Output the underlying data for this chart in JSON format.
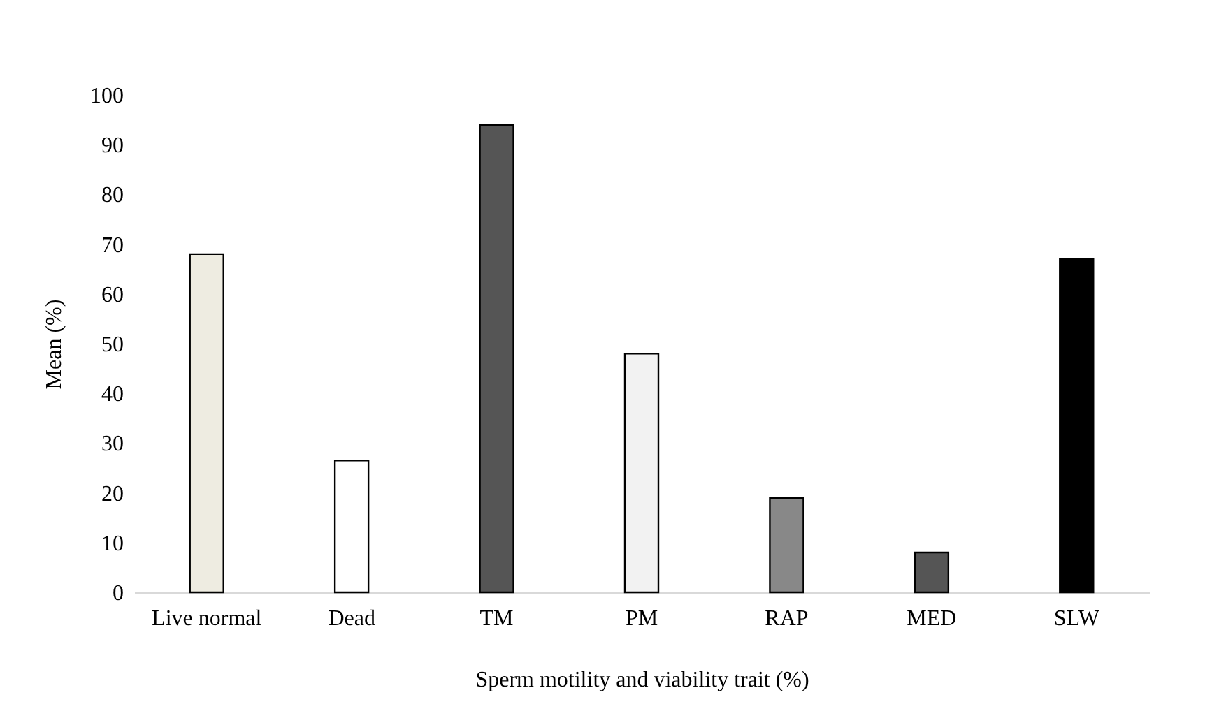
{
  "chart_data": {
    "type": "bar",
    "categories": [
      "Live normal",
      "Dead",
      "TM",
      "PM",
      "RAP",
      "MED",
      "SLW"
    ],
    "values": [
      68,
      26.5,
      94,
      48,
      19,
      8,
      67
    ],
    "colors": [
      "#eeece1",
      "#ffffff",
      "#555555",
      "#f2f2f2",
      "#888888",
      "#555555",
      "#000000"
    ],
    "xlabel": "Sperm motility and viability trait  (%)",
    "ylabel": "Mean (%)",
    "ylim": [
      0,
      100
    ],
    "yticks": [
      0,
      10,
      20,
      30,
      40,
      50,
      60,
      70,
      80,
      90,
      100
    ],
    "grid": false
  }
}
